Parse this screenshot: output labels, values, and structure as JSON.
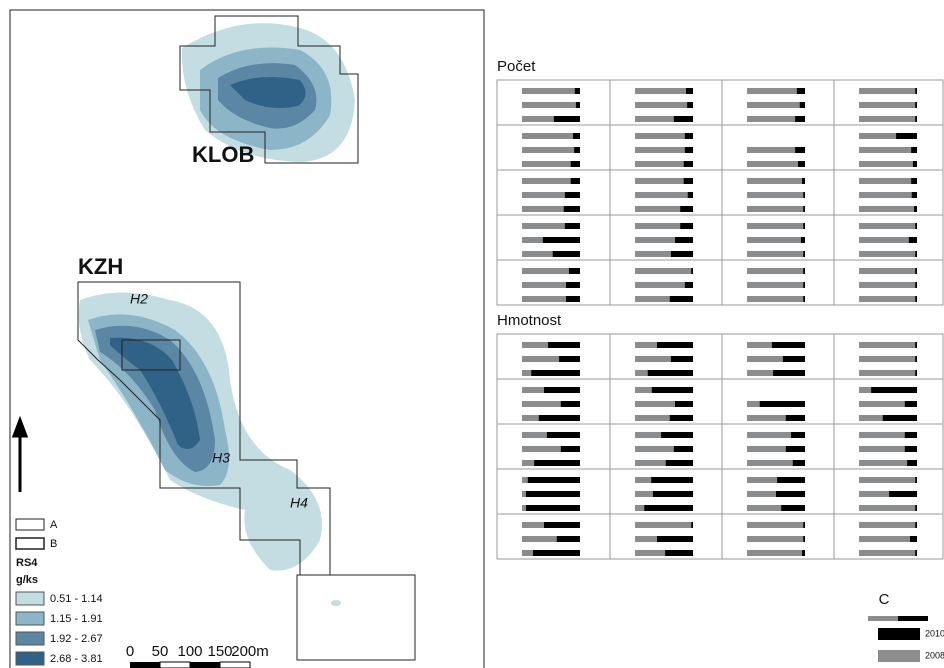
{
  "map": {
    "labels": [
      "KLOB",
      "KZH",
      "H2",
      "H3",
      "H4"
    ]
  },
  "legend": {
    "a": "A",
    "b": "B",
    "title": "RS4",
    "unit": "g/ks",
    "classes": [
      {
        "label": "0.51 - 1.14",
        "color": "#c4dde3"
      },
      {
        "label": "1.15 - 1.91",
        "color": "#8cb5c8"
      },
      {
        "label": "1.92 - 2.67",
        "color": "#5b87a5"
      },
      {
        "label": "2.68 - 3.81",
        "color": "#2f6286"
      }
    ]
  },
  "scale": [
    "0",
    "50",
    "100",
    "150",
    "200m"
  ],
  "panels": [
    {
      "title": "Počet",
      "rows": [
        [
          [
            9,
            7,
            45
          ],
          [
            12,
            10,
            33
          ],
          [
            14,
            9,
            17
          ],
          [
            3,
            3,
            3
          ]
        ],
        [
          [
            12,
            10,
            16
          ],
          [
            14,
            14,
            16
          ],
          [
            null,
            17,
            12
          ],
          [
            36,
            10,
            7
          ]
        ],
        [
          [
            16,
            26,
            28
          ],
          [
            16,
            9,
            22
          ],
          [
            5,
            3,
            3
          ],
          [
            10,
            9,
            5
          ]
        ],
        [
          [
            26,
            64,
            47
          ],
          [
            22,
            31,
            38
          ],
          [
            3,
            7,
            3
          ],
          [
            3,
            14,
            3
          ]
        ],
        [
          [
            19,
            24,
            24
          ],
          [
            3,
            14,
            40
          ],
          [
            3,
            3,
            3
          ],
          [
            3,
            3,
            3
          ]
        ]
      ]
    },
    {
      "title": "Hmotnost",
      "rows": [
        [
          [
            55,
            36,
            84
          ],
          [
            62,
            38,
            78
          ],
          [
            57,
            38,
            55
          ],
          [
            3,
            3,
            3
          ]
        ],
        [
          [
            62,
            33,
            71
          ],
          [
            71,
            31,
            40
          ],
          [
            null,
            78,
            33
          ],
          [
            79,
            21,
            59
          ]
        ],
        [
          [
            57,
            33,
            79
          ],
          [
            55,
            33,
            47
          ],
          [
            24,
            33,
            21
          ],
          [
            21,
            21,
            17
          ]
        ],
        [
          [
            90,
            93,
            93
          ],
          [
            72,
            69,
            84
          ],
          [
            48,
            50,
            41
          ],
          [
            3,
            48,
            3
          ]
        ],
        [
          [
            62,
            40,
            81
          ],
          [
            3,
            62,
            48
          ],
          [
            3,
            3,
            5
          ],
          [
            3,
            12,
            3
          ]
        ]
      ]
    }
  ],
  "key": {
    "title": "C",
    "items": [
      {
        "label": "2010",
        "color": "#000000"
      },
      {
        "label": "2008",
        "color": "#8a8c8e"
      }
    ]
  }
}
